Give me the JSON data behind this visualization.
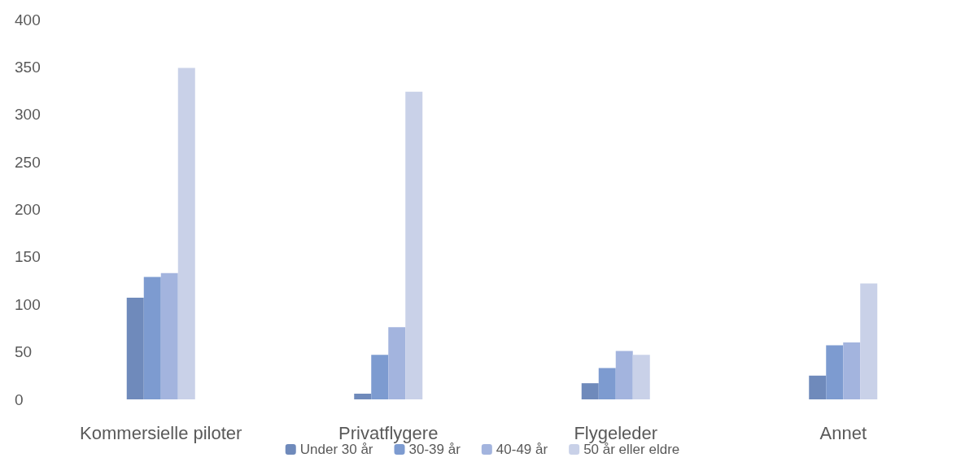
{
  "chart_data": {
    "type": "bar",
    "categories": [
      "Kommersielle piloter",
      "Privatflygere",
      "Flygeleder",
      "Annet"
    ],
    "series": [
      {
        "name": "Under 30 år",
        "color": "#6f8abb",
        "values": [
          107,
          6,
          17,
          25
        ]
      },
      {
        "name": "30-39 år",
        "color": "#7d9bd0",
        "values": [
          129,
          47,
          33,
          57
        ]
      },
      {
        "name": "40-49 år",
        "color": "#a3b4de",
        "values": [
          133,
          76,
          51,
          60
        ]
      },
      {
        "name": "50 år eller eldre",
        "color": "#c9d1e8",
        "values": [
          349,
          324,
          47,
          122
        ]
      }
    ],
    "ylim": [
      0,
      400
    ],
    "yticks": [
      0,
      50,
      100,
      150,
      200,
      250,
      300,
      350,
      400
    ],
    "grid": false,
    "legend": "bottom"
  }
}
